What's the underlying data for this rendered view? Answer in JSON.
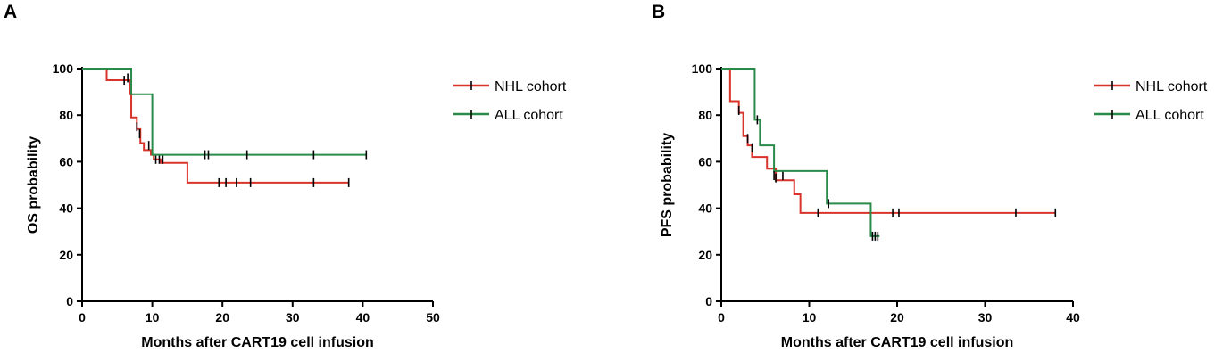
{
  "chart_data": [
    {
      "panel_label": "A",
      "type": "line",
      "step": true,
      "xlabel": "Months after CART19 cell infusion",
      "ylabel": "OS probability",
      "xlim": [
        0,
        50
      ],
      "ylim": [
        0,
        100
      ],
      "xticks": [
        "0",
        "10",
        "20",
        "30",
        "40",
        "50"
      ],
      "yticks": [
        "0",
        "20",
        "40",
        "60",
        "80",
        "100"
      ],
      "legend_position": "top-right",
      "series": [
        {
          "name": "NHL cohort",
          "color": "#d9342b",
          "steps": [
            [
              0,
              100
            ],
            [
              3.5,
              95
            ],
            [
              6.8,
              89
            ],
            [
              7,
              79
            ],
            [
              7.8,
              74
            ],
            [
              8.3,
              68
            ],
            [
              8.8,
              65
            ],
            [
              9.8,
              63
            ],
            [
              10.2,
              61
            ],
            [
              11.2,
              59.5
            ],
            [
              15,
              51
            ],
            [
              38,
              51
            ]
          ],
          "censored": [
            [
              6,
              95
            ],
            [
              7.8,
              75
            ],
            [
              8.2,
              72
            ],
            [
              9.5,
              67
            ],
            [
              10.5,
              61
            ],
            [
              11,
              61
            ],
            [
              11.5,
              61
            ],
            [
              19.5,
              51
            ],
            [
              20.5,
              51
            ],
            [
              22,
              51
            ],
            [
              24,
              51
            ],
            [
              33,
              51
            ],
            [
              38,
              51
            ]
          ]
        },
        {
          "name": "ALL cohort",
          "color": "#2a8a4a",
          "steps": [
            [
              0,
              100
            ],
            [
              7,
              100
            ],
            [
              7,
              89
            ],
            [
              10,
              89
            ],
            [
              10,
              63
            ],
            [
              40.5,
              63
            ]
          ],
          "censored": [
            [
              6.5,
              96
            ],
            [
              17.5,
              63
            ],
            [
              18,
              63
            ],
            [
              23.5,
              63
            ],
            [
              33,
              63
            ],
            [
              40.5,
              63
            ]
          ]
        }
      ]
    },
    {
      "panel_label": "B",
      "type": "line",
      "step": true,
      "xlabel": "Months after CART19 cell infusion",
      "ylabel": "PFS probability",
      "xlim": [
        0,
        40
      ],
      "ylim": [
        0,
        100
      ],
      "xticks": [
        "0",
        "10",
        "20",
        "30",
        "40"
      ],
      "yticks": [
        "0",
        "20",
        "40",
        "60",
        "80",
        "100"
      ],
      "legend_position": "top-right",
      "series": [
        {
          "name": "NHL cohort",
          "color": "#d9342b",
          "steps": [
            [
              0,
              100
            ],
            [
              1,
              100
            ],
            [
              1,
              86
            ],
            [
              2,
              86
            ],
            [
              2,
              81
            ],
            [
              2.5,
              81
            ],
            [
              2.5,
              71
            ],
            [
              3,
              71
            ],
            [
              3,
              67
            ],
            [
              3.5,
              67
            ],
            [
              3.5,
              62
            ],
            [
              5.2,
              62
            ],
            [
              5.2,
              57
            ],
            [
              6.2,
              57
            ],
            [
              6.2,
              52
            ],
            [
              8.3,
              52
            ],
            [
              8.3,
              46
            ],
            [
              9,
              46
            ],
            [
              9,
              38
            ],
            [
              38,
              38
            ]
          ],
          "censored": [
            [
              2,
              82
            ],
            [
              3,
              70
            ],
            [
              3.5,
              66
            ],
            [
              6.2,
              53
            ],
            [
              7,
              54
            ],
            [
              11,
              38
            ],
            [
              19.5,
              38
            ],
            [
              20.2,
              38
            ],
            [
              33.5,
              38
            ],
            [
              38,
              38
            ]
          ]
        },
        {
          "name": "ALL cohort",
          "color": "#2a8a4a",
          "steps": [
            [
              0,
              100
            ],
            [
              3.8,
              100
            ],
            [
              3.8,
              78
            ],
            [
              4.4,
              78
            ],
            [
              4.4,
              67
            ],
            [
              6,
              67
            ],
            [
              6,
              56
            ],
            [
              12,
              56
            ],
            [
              12,
              42
            ],
            [
              17,
              42
            ],
            [
              17,
              28
            ],
            [
              18,
              28
            ]
          ],
          "censored": [
            [
              4.1,
              78
            ],
            [
              6,
              54
            ],
            [
              12.2,
              42
            ],
            [
              17.2,
              28
            ],
            [
              17.5,
              28
            ],
            [
              17.8,
              28
            ]
          ]
        }
      ]
    }
  ]
}
